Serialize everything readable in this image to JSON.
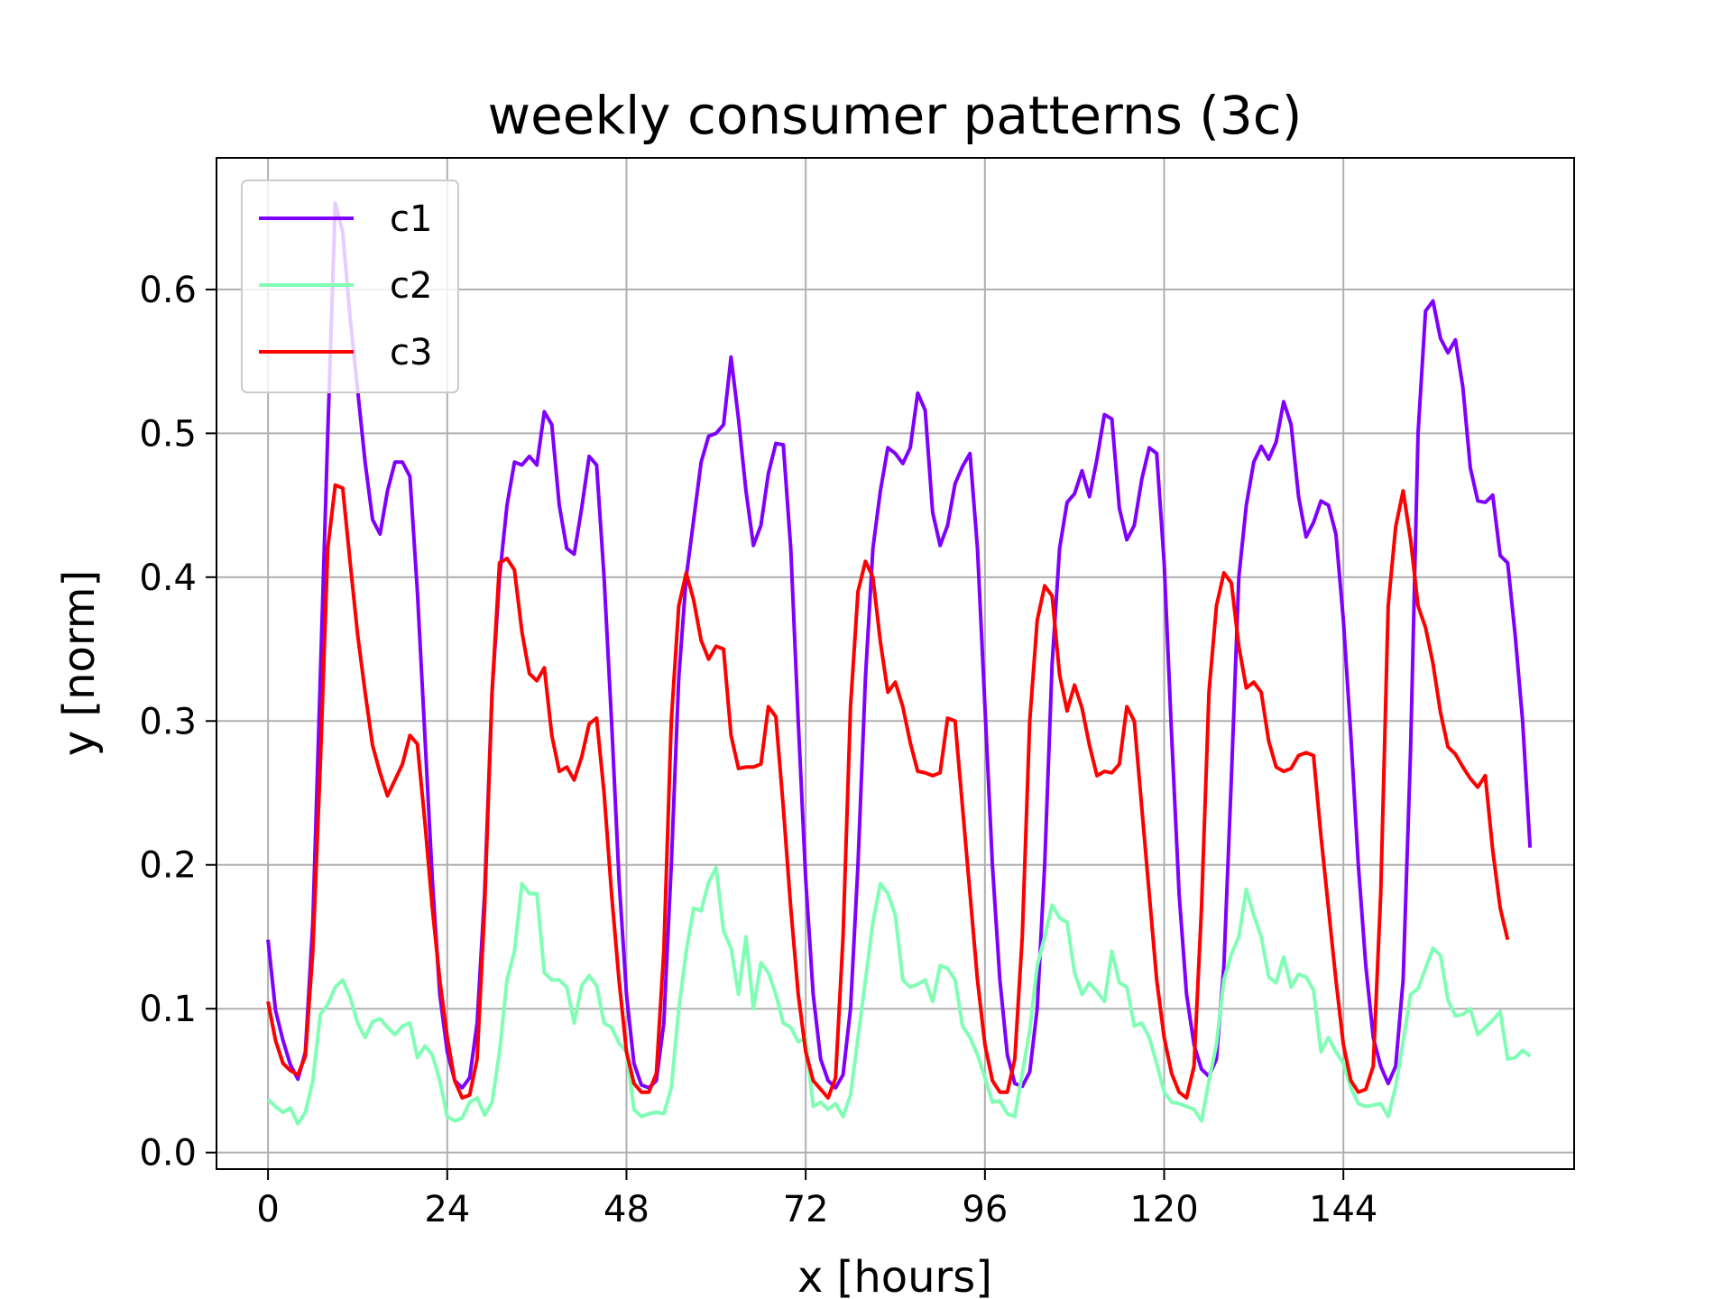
{
  "chart_data": {
    "type": "line",
    "title": "weekly consumer patterns (3c)",
    "xlabel": "x [hours]",
    "ylabel": "y [norm]",
    "xlim": [
      -6.9,
      174.9
    ],
    "ylim": [
      -0.0115,
      0.6915
    ],
    "xticks": [
      0,
      24,
      48,
      72,
      96,
      120,
      144
    ],
    "yticks": [
      0.0,
      0.1,
      0.2,
      0.3,
      0.4,
      0.5,
      0.6
    ],
    "ytick_labels": [
      "0.0",
      "0.1",
      "0.2",
      "0.3",
      "0.4",
      "0.5",
      "0.6"
    ],
    "grid": true,
    "legend_position": "upper left",
    "series": [
      {
        "name": "c1",
        "color": "#8000ff",
        "values": [
          0.148,
          0.099,
          0.078,
          0.061,
          0.051,
          0.07,
          0.16,
          0.33,
          0.5,
          0.66,
          0.64,
          0.58,
          0.53,
          0.48,
          0.44,
          0.43,
          0.46,
          0.48,
          0.48,
          0.47,
          0.39,
          0.29,
          0.19,
          0.11,
          0.07,
          0.05,
          0.045,
          0.052,
          0.09,
          0.18,
          0.32,
          0.4,
          0.45,
          0.48,
          0.478,
          0.484,
          0.478,
          0.515,
          0.506,
          0.45,
          0.42,
          0.416,
          0.448,
          0.484,
          0.478,
          0.4,
          0.3,
          0.19,
          0.11,
          0.062,
          0.047,
          0.045,
          0.05,
          0.09,
          0.2,
          0.33,
          0.4,
          0.44,
          0.48,
          0.498,
          0.5,
          0.506,
          0.553,
          0.51,
          0.46,
          0.422,
          0.436,
          0.472,
          0.493,
          0.492,
          0.42,
          0.3,
          0.19,
          0.11,
          0.065,
          0.05,
          0.045,
          0.054,
          0.1,
          0.2,
          0.33,
          0.42,
          0.46,
          0.49,
          0.486,
          0.479,
          0.49,
          0.528,
          0.516,
          0.445,
          0.422,
          0.436,
          0.465,
          0.477,
          0.486,
          0.42,
          0.31,
          0.2,
          0.12,
          0.068,
          0.048,
          0.046,
          0.056,
          0.1,
          0.2,
          0.34,
          0.42,
          0.452,
          0.458,
          0.474,
          0.456,
          0.482,
          0.513,
          0.51,
          0.448,
          0.426,
          0.436,
          0.468,
          0.49,
          0.486,
          0.41,
          0.29,
          0.18,
          0.11,
          0.075,
          0.058,
          0.053,
          0.065,
          0.13,
          0.26,
          0.4,
          0.45,
          0.48,
          0.491,
          0.482,
          0.494,
          0.522,
          0.506,
          0.456,
          0.428,
          0.438,
          0.453,
          0.45,
          0.43,
          0.37,
          0.29,
          0.2,
          0.13,
          0.08,
          0.06,
          0.048,
          0.06,
          0.12,
          0.28,
          0.5,
          0.585,
          0.592,
          0.566,
          0.556,
          0.565,
          0.532,
          0.476,
          0.453,
          0.452,
          0.457,
          0.415,
          0.41,
          0.36,
          0.3,
          0.212
        ]
      },
      {
        "name": "c2",
        "color": "#80ffb4",
        "values": [
          0.037,
          0.032,
          0.028,
          0.031,
          0.02,
          0.028,
          0.05,
          0.096,
          0.103,
          0.115,
          0.12,
          0.108,
          0.09,
          0.08,
          0.091,
          0.093,
          0.087,
          0.082,
          0.088,
          0.09,
          0.066,
          0.074,
          0.068,
          0.05,
          0.025,
          0.022,
          0.024,
          0.035,
          0.038,
          0.026,
          0.035,
          0.07,
          0.12,
          0.14,
          0.187,
          0.18,
          0.18,
          0.125,
          0.12,
          0.12,
          0.115,
          0.09,
          0.116,
          0.123,
          0.116,
          0.09,
          0.087,
          0.076,
          0.07,
          0.03,
          0.025,
          0.027,
          0.028,
          0.027,
          0.045,
          0.1,
          0.14,
          0.17,
          0.168,
          0.188,
          0.198,
          0.154,
          0.142,
          0.11,
          0.15,
          0.1,
          0.132,
          0.125,
          0.11,
          0.09,
          0.087,
          0.077,
          0.08,
          0.032,
          0.035,
          0.03,
          0.034,
          0.025,
          0.04,
          0.08,
          0.12,
          0.16,
          0.187,
          0.18,
          0.165,
          0.12,
          0.115,
          0.117,
          0.12,
          0.105,
          0.13,
          0.128,
          0.12,
          0.088,
          0.08,
          0.068,
          0.052,
          0.035,
          0.036,
          0.027,
          0.025,
          0.055,
          0.085,
          0.13,
          0.15,
          0.172,
          0.163,
          0.16,
          0.125,
          0.11,
          0.118,
          0.112,
          0.105,
          0.14,
          0.118,
          0.115,
          0.088,
          0.09,
          0.08,
          0.062,
          0.042,
          0.035,
          0.034,
          0.032,
          0.03,
          0.022,
          0.05,
          0.075,
          0.12,
          0.138,
          0.15,
          0.183,
          0.165,
          0.15,
          0.122,
          0.118,
          0.136,
          0.115,
          0.124,
          0.122,
          0.113,
          0.07,
          0.08,
          0.07,
          0.062,
          0.045,
          0.034,
          0.032,
          0.033,
          0.034,
          0.025,
          0.046,
          0.077,
          0.11,
          0.114,
          0.128,
          0.142,
          0.137,
          0.106,
          0.095,
          0.096,
          0.1,
          0.082,
          0.087,
          0.092,
          0.098,
          0.065,
          0.066,
          0.071,
          0.067
        ]
      },
      {
        "name": "c3",
        "color": "#ff0000",
        "values": [
          0.105,
          0.078,
          0.062,
          0.057,
          0.054,
          0.067,
          0.14,
          0.27,
          0.42,
          0.464,
          0.462,
          0.41,
          0.36,
          0.32,
          0.283,
          0.264,
          0.248,
          0.259,
          0.27,
          0.29,
          0.284,
          0.23,
          0.17,
          0.12,
          0.08,
          0.05,
          0.038,
          0.04,
          0.065,
          0.17,
          0.32,
          0.41,
          0.413,
          0.405,
          0.362,
          0.333,
          0.328,
          0.337,
          0.29,
          0.265,
          0.268,
          0.259,
          0.275,
          0.298,
          0.302,
          0.25,
          0.18,
          0.12,
          0.07,
          0.048,
          0.042,
          0.042,
          0.055,
          0.14,
          0.3,
          0.38,
          0.403,
          0.384,
          0.356,
          0.343,
          0.352,
          0.35,
          0.29,
          0.267,
          0.268,
          0.268,
          0.27,
          0.31,
          0.303,
          0.24,
          0.17,
          0.11,
          0.07,
          0.05,
          0.044,
          0.038,
          0.052,
          0.15,
          0.31,
          0.39,
          0.411,
          0.4,
          0.355,
          0.32,
          0.327,
          0.31,
          0.285,
          0.265,
          0.264,
          0.262,
          0.264,
          0.302,
          0.3,
          0.24,
          0.18,
          0.12,
          0.075,
          0.05,
          0.042,
          0.042,
          0.065,
          0.15,
          0.3,
          0.37,
          0.394,
          0.387,
          0.332,
          0.307,
          0.325,
          0.309,
          0.283,
          0.262,
          0.265,
          0.264,
          0.27,
          0.31,
          0.3,
          0.24,
          0.18,
          0.12,
          0.08,
          0.055,
          0.042,
          0.038,
          0.06,
          0.17,
          0.32,
          0.38,
          0.403,
          0.396,
          0.352,
          0.323,
          0.327,
          0.32,
          0.286,
          0.268,
          0.265,
          0.267,
          0.276,
          0.278,
          0.276,
          0.22,
          0.17,
          0.12,
          0.075,
          0.05,
          0.042,
          0.044,
          0.06,
          0.18,
          0.38,
          0.435,
          0.46,
          0.426,
          0.38,
          0.365,
          0.34,
          0.306,
          0.282,
          0.277,
          0.268,
          0.26,
          0.254,
          0.262,
          0.21,
          0.17,
          0.148
        ]
      }
    ]
  }
}
